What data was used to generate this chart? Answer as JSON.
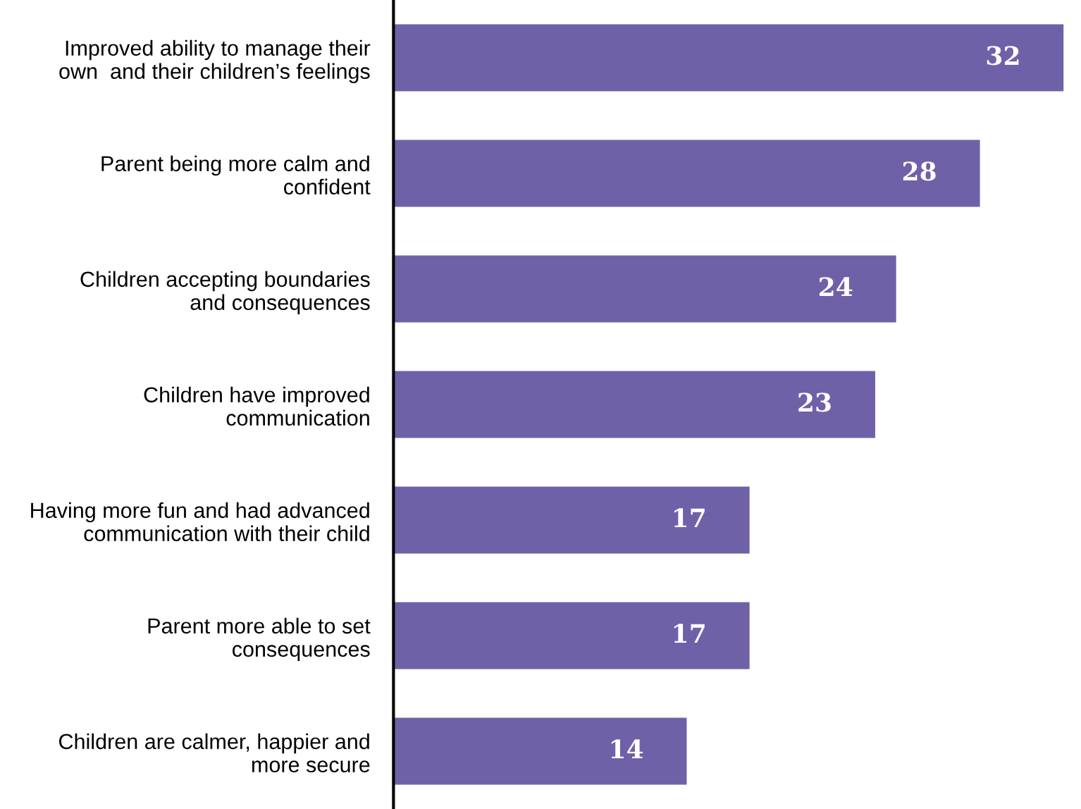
{
  "chart_data": {
    "type": "bar",
    "orientation": "horizontal",
    "categories": [
      "Improved ability to manage their\nown  and their children’s feelings",
      "Parent being more calm and\nconfident",
      "Children accepting boundaries\nand consequences",
      "Children have improved\ncommunication",
      "Having more fun and had advanced\ncommunication with their child",
      "Parent more able to set\nconsequences",
      "Children are calmer, happier and\nmore secure"
    ],
    "values": [
      32,
      28,
      24,
      23,
      17,
      17,
      14
    ],
    "color": "#6f61a8",
    "data_labels": true,
    "xlim": [
      0,
      32
    ],
    "tick_labels": "y",
    "grid": false
  }
}
